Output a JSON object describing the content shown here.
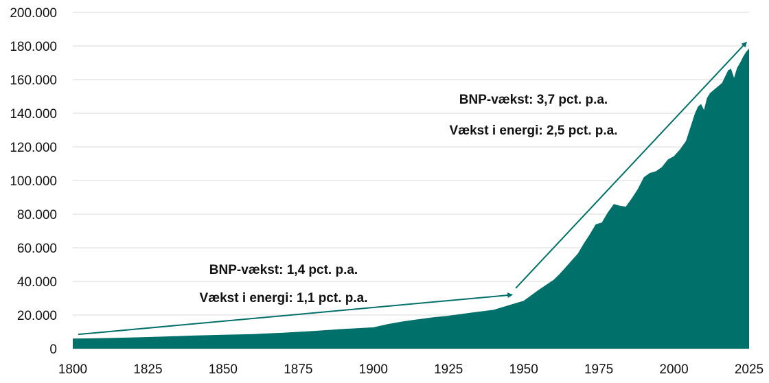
{
  "chart_data": {
    "type": "area",
    "title": "",
    "xlabel": "",
    "ylabel": "",
    "xlim": [
      1800,
      2025
    ],
    "ylim": [
      0,
      200000
    ],
    "x_ticks": [
      1800,
      1825,
      1850,
      1875,
      1900,
      1925,
      1950,
      1975,
      2000,
      2025
    ],
    "x_tick_labels": [
      "1800",
      "1825",
      "1850",
      "1875",
      "1900",
      "1925",
      "1950",
      "1975",
      "2000",
      "2025"
    ],
    "y_ticks": [
      0,
      20000,
      40000,
      60000,
      80000,
      100000,
      120000,
      140000,
      160000,
      180000,
      200000
    ],
    "y_tick_labels": [
      "0",
      "20.000",
      "40.000",
      "60.000",
      "80.000",
      "100.000",
      "120.000",
      "140.000",
      "160.000",
      "180.000",
      "200.000"
    ],
    "grid": true,
    "colors": {
      "area": "#00706A",
      "arrow": "#00706A",
      "grid": "#d9d9d9",
      "text": "#111111"
    },
    "series": [
      {
        "x": [
          1800,
          1810,
          1820,
          1830,
          1840,
          1850,
          1860,
          1870,
          1880,
          1890,
          1900,
          1905,
          1910,
          1915,
          1920,
          1925,
          1930,
          1935,
          1940,
          1945,
          1950,
          1955,
          1960,
          1962,
          1964,
          1966,
          1968,
          1970,
          1972,
          1974,
          1976,
          1978,
          1980,
          1982,
          1984,
          1986,
          1988,
          1990,
          1992,
          1994,
          1996,
          1998,
          2000,
          2002,
          2004,
          2006,
          2007,
          2008,
          2009,
          2010,
          2011,
          2012,
          2014,
          2016,
          2018,
          2019,
          2020,
          2021,
          2022,
          2023,
          2024,
          2025
        ],
        "values": [
          6000,
          6300,
          6700,
          7200,
          7800,
          8300,
          8700,
          9500,
          10500,
          11700,
          12700,
          14700,
          16300,
          17500,
          18700,
          19600,
          20800,
          22000,
          23100,
          25800,
          28500,
          35000,
          41000,
          44500,
          48500,
          52500,
          56500,
          62500,
          68000,
          74000,
          75000,
          81000,
          86000,
          85000,
          84500,
          89500,
          95000,
          102000,
          104500,
          105500,
          108000,
          112500,
          114500,
          118500,
          123500,
          134500,
          140000,
          144000,
          145500,
          142000,
          149000,
          152000,
          155000,
          158000,
          165500,
          166500,
          161000,
          167000,
          170000,
          173500,
          176500,
          178500
        ]
      }
    ],
    "annotations": [
      {
        "line1": "BNP-vækst: 1,4 pct. p.a.",
        "line2": "Vækst i energi: 1,1 pct. p.a.",
        "arrow_from": [
          1800,
          8500
        ],
        "arrow_to": [
          1946,
          32000
        ]
      },
      {
        "line1": "BNP-vækst: 3,7 pct. p.a.",
        "line2": "Vækst i energi: 2,5 pct. p.a.",
        "arrow_from": [
          1946,
          36000
        ],
        "arrow_to": [
          2024,
          182000
        ]
      }
    ]
  }
}
